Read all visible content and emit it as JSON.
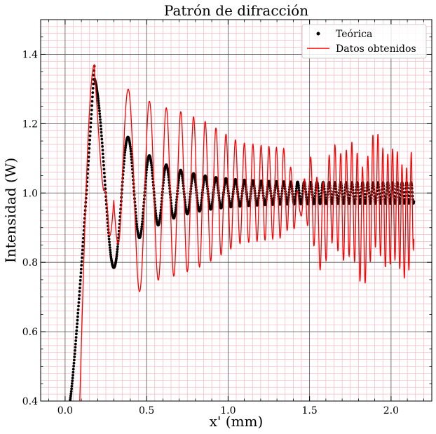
{
  "chart_data": {
    "type": "line",
    "title": "Patrón de difracción",
    "xlabel": "x' (mm)",
    "ylabel": "Intensidad (W)",
    "xlim": [
      -0.15,
      2.25
    ],
    "ylim": [
      0.4,
      1.5
    ],
    "x_ticks": [
      0.0,
      0.5,
      1.0,
      1.5,
      2.0
    ],
    "x_tick_labels": [
      "0.0",
      "0.5",
      "1.0",
      "1.5",
      "2.0"
    ],
    "y_ticks": [
      0.4,
      0.6,
      0.8,
      1.0,
      1.2,
      1.4
    ],
    "y_tick_labels": [
      "0.4",
      "0.6",
      "0.8",
      "1.0",
      "1.2",
      "1.4"
    ],
    "grid": "major and minor",
    "legend_position": "top-right",
    "colors": {
      "teorica": "#000000",
      "datos": "#ff0000",
      "major_grid": "#555555",
      "minor_grid": "#f4b8c4"
    },
    "series": [
      {
        "name": "Teórica",
        "style": "scatter",
        "marker": "dot",
        "x_range": [
          0.0,
          2.14
        ],
        "envelope_points": [
          {
            "x": 0.03,
            "y": 0.4
          },
          {
            "x": 0.18,
            "y": 1.37
          },
          {
            "x": 0.27,
            "y": 0.78
          },
          {
            "x": 0.34,
            "y": 1.2
          },
          {
            "x": 0.4,
            "y": 0.85
          },
          {
            "x": 0.45,
            "y": 1.15
          },
          {
            "x": 0.49,
            "y": 0.87
          },
          {
            "x": 0.53,
            "y": 1.13
          },
          {
            "x": 0.57,
            "y": 0.89
          },
          {
            "x": 0.61,
            "y": 1.12
          },
          {
            "x": 1.0,
            "y": 1.08
          },
          {
            "x": 1.5,
            "y": 1.05
          },
          {
            "x": 2.14,
            "y": 1.03
          }
        ]
      },
      {
        "name": "Datos obtenidos",
        "style": "line",
        "x_range": [
          0.09,
          2.14
        ],
        "envelope_points": [
          {
            "x": 0.09,
            "y": 0.4
          },
          {
            "x": 0.18,
            "y": 1.37
          },
          {
            "x": 0.27,
            "y": 0.78
          },
          {
            "x": 0.34,
            "y": 1.32
          },
          {
            "x": 0.44,
            "y": 1.3
          },
          {
            "x": 0.55,
            "y": 1.26
          },
          {
            "x": 0.7,
            "y": 1.24
          },
          {
            "x": 0.85,
            "y": 1.21
          },
          {
            "x": 1.07,
            "y": 1.14
          },
          {
            "x": 1.35,
            "y": 1.12
          },
          {
            "x": 1.5,
            "y": 0.86
          },
          {
            "x": 1.8,
            "y": 0.79
          },
          {
            "x": 2.14,
            "y": 0.81
          }
        ]
      }
    ]
  }
}
